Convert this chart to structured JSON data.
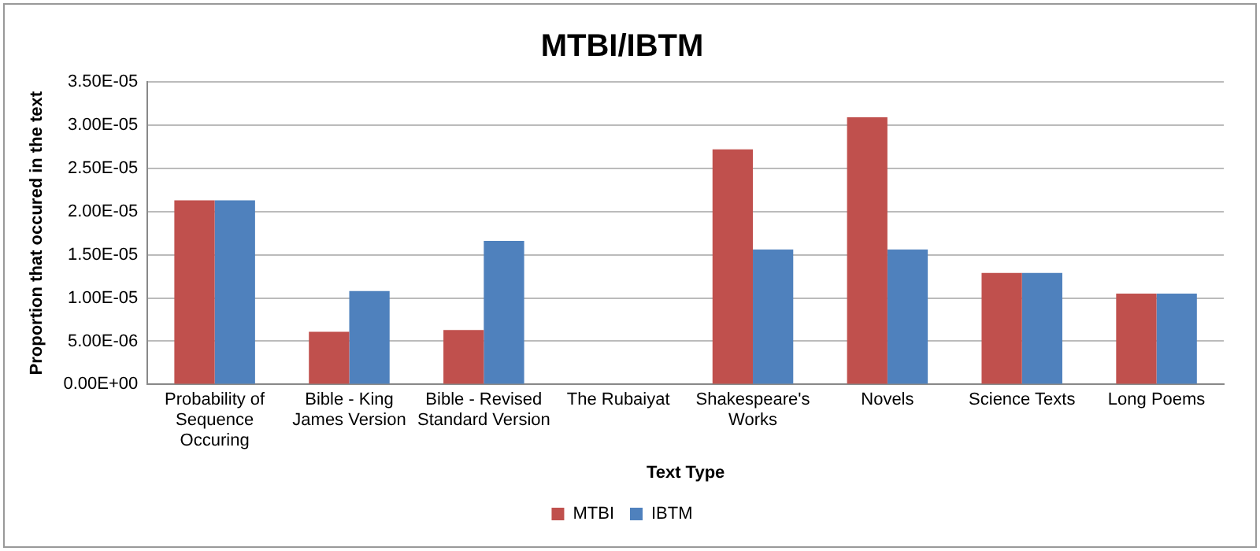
{
  "chart_data": {
    "type": "bar",
    "title": "MTBI/IBTM",
    "xlabel": "Text Type",
    "ylabel": "Proportion that occured in the text",
    "categories": [
      "Probability of Sequence Occuring",
      "Bible - King James Version",
      "Bible - Revised Standard Version",
      "The Rubaiyat",
      "Shakespeare's Works",
      "Novels",
      "Science Texts",
      "Long Poems"
    ],
    "series": [
      {
        "name": "MTBI",
        "color": "#c0504d",
        "values": [
          2.13e-05,
          6.1e-06,
          6.3e-06,
          0,
          2.72e-05,
          3.09e-05,
          1.29e-05,
          1.05e-05
        ]
      },
      {
        "name": "IBTM",
        "color": "#4f81bd",
        "values": [
          2.13e-05,
          1.08e-05,
          1.66e-05,
          0,
          1.56e-05,
          1.56e-05,
          1.29e-05,
          1.05e-05
        ]
      }
    ],
    "ylim": [
      0,
      3.5e-05
    ],
    "yticks": [
      {
        "value": 0,
        "label": "0.00E+00"
      },
      {
        "value": 5e-06,
        "label": "5.00E-06"
      },
      {
        "value": 1e-05,
        "label": "1.00E-05"
      },
      {
        "value": 1.5e-05,
        "label": "1.50E-05"
      },
      {
        "value": 2e-05,
        "label": "2.00E-05"
      },
      {
        "value": 2.5e-05,
        "label": "2.50E-05"
      },
      {
        "value": 3e-05,
        "label": "3.00E-05"
      },
      {
        "value": 3.5e-05,
        "label": "3.50E-05"
      }
    ],
    "grid": "y",
    "legend": "bottom"
  }
}
